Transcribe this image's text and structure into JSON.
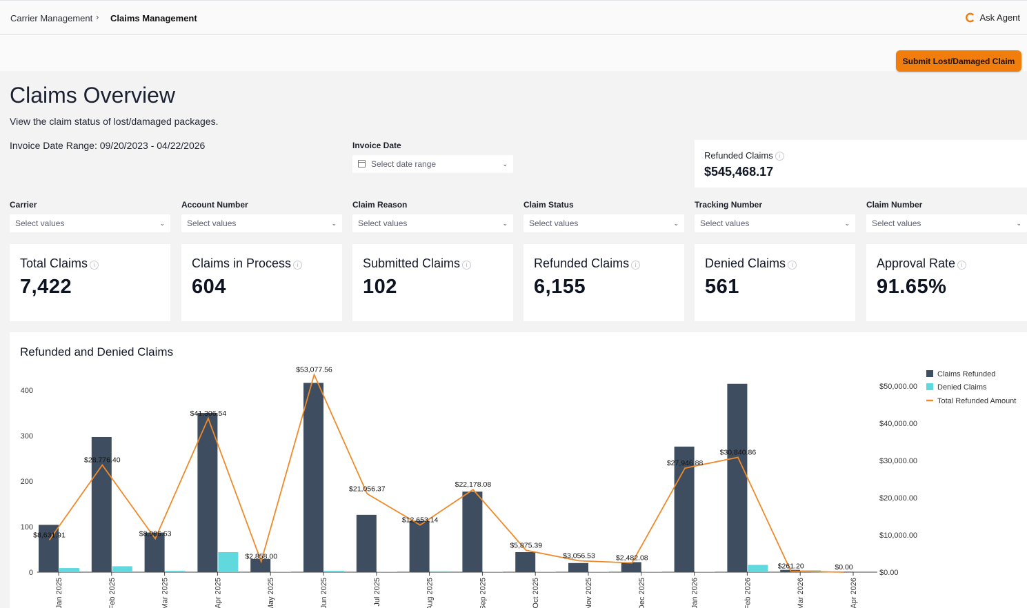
{
  "breadcrumb": {
    "parent": "Carrier Management",
    "separator": "›",
    "current": "Claims Management"
  },
  "agent": {
    "label": "Ask Agent"
  },
  "actions": {
    "submit_label": "Submit Lost/Damaged Claim"
  },
  "header": {
    "title": "Claims Overview",
    "subtitle": "View the claim status of lost/damaged packages.",
    "range": "Invoice Date Range: 09/20/2023 - 04/22/2026"
  },
  "invoice_date": {
    "label": "Invoice Date",
    "placeholder": "Select date range"
  },
  "refunded_summary": {
    "label": "Refunded Claims",
    "value": "$545,468.17"
  },
  "filters": [
    {
      "label": "Carrier",
      "placeholder": "Select values"
    },
    {
      "label": "Account Number",
      "placeholder": "Select values"
    },
    {
      "label": "Claim Reason",
      "placeholder": "Select values"
    },
    {
      "label": "Claim Status",
      "placeholder": "Select values"
    },
    {
      "label": "Tracking Number",
      "placeholder": "Select values"
    },
    {
      "label": "Claim Number",
      "placeholder": "Select values"
    }
  ],
  "kpis": [
    {
      "label": "Total Claims",
      "value": "7,422"
    },
    {
      "label": "Claims in Process",
      "value": "604"
    },
    {
      "label": "Submitted Claims",
      "value": "102"
    },
    {
      "label": "Refunded Claims",
      "value": "6,155"
    },
    {
      "label": "Denied Claims",
      "value": "561"
    },
    {
      "label": "Approval Rate",
      "value": "91.65%"
    }
  ],
  "chart_data": {
    "type": "bar",
    "title": "Refunded and Denied Claims",
    "categories": [
      "Jan 2025",
      "Feb 2025",
      "Mar 2025",
      "Apr 2025",
      "May 2025",
      "Jun 2025",
      "Jul 2025",
      "Aug 2025",
      "Sep 2025",
      "Oct 2025",
      "Nov 2025",
      "Dec 2025",
      "Jan 2026",
      "Feb 2026",
      "Mar 2026",
      "Apr 2026"
    ],
    "series": [
      {
        "name": "Claims Refunded",
        "type": "bar",
        "axis": "left",
        "color": "#3f4d60",
        "values": [
          104,
          297,
          87,
          350,
          29,
          416,
          126,
          113,
          177,
          44,
          20,
          22,
          276,
          414,
          5,
          1
        ]
      },
      {
        "name": "Denied Claims",
        "type": "bar",
        "axis": "left",
        "color": "#5fd8de",
        "values": [
          9,
          13,
          3,
          44,
          1,
          3,
          1,
          2,
          1,
          1,
          1,
          1,
          1,
          16,
          4,
          0
        ]
      },
      {
        "name": "Total Refunded Amount",
        "type": "line",
        "axis": "right",
        "color": "#ee8a2a",
        "values": [
          8631.91,
          28776.4,
          8986.63,
          41306.54,
          2858.0,
          53077.56,
          21056.37,
          12653.14,
          22178.08,
          5875.39,
          3056.53,
          2482.08,
          27946.88,
          30840.86,
          261.2,
          0.0
        ],
        "labels": [
          "$8,631.91",
          "$28,776.40",
          "$8,986.63",
          "$41,306.54",
          "$2,858.00",
          "$53,077.56",
          "$21,056.37",
          "$12,653.14",
          "$22,178.08",
          "$5,875.39",
          "$3,056.53",
          "$2,482.08",
          "$27,946.88",
          "$30,840.86",
          "$261.20",
          "$0.00"
        ]
      }
    ],
    "y_left": {
      "ticks": [
        "0",
        "100",
        "200",
        "300",
        "400"
      ],
      "range": [
        0,
        400
      ]
    },
    "y_right": {
      "ticks": [
        "$0.00",
        "$10,000.00",
        "$20,000.00",
        "$30,000.00",
        "$40,000.00",
        "$50,000.00"
      ],
      "range": [
        0,
        50000
      ]
    },
    "legend": {
      "position": "top-right"
    },
    "grid": false
  }
}
